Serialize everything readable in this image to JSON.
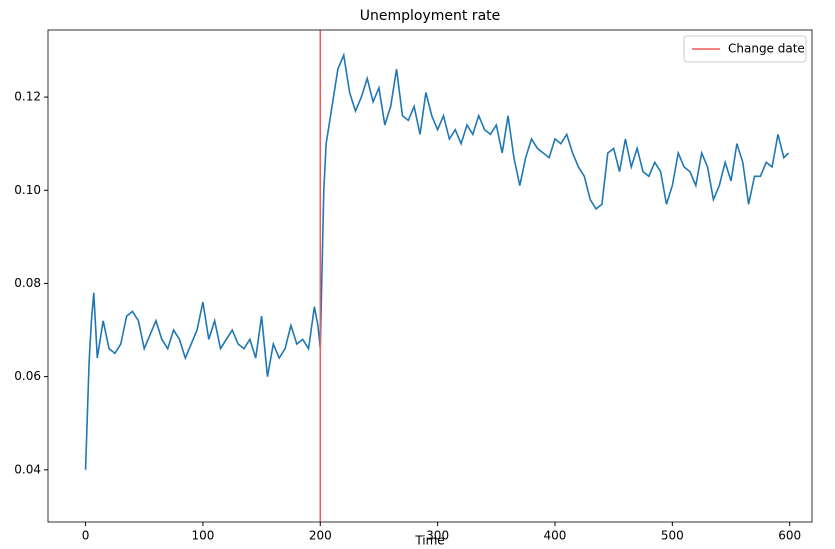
{
  "chart_data": {
    "type": "line",
    "title": "Unemployment rate",
    "x_label": "Time",
    "x": [
      0,
      3,
      5,
      7,
      10,
      15,
      20,
      25,
      30,
      35,
      40,
      45,
      50,
      55,
      60,
      65,
      70,
      75,
      80,
      85,
      90,
      95,
      100,
      105,
      110,
      115,
      120,
      125,
      130,
      135,
      140,
      145,
      150,
      155,
      160,
      165,
      170,
      175,
      180,
      185,
      190,
      195,
      198,
      200,
      203,
      205,
      210,
      215,
      220,
      225,
      230,
      235,
      240,
      245,
      250,
      255,
      260,
      265,
      270,
      275,
      280,
      285,
      290,
      295,
      300,
      305,
      310,
      315,
      320,
      325,
      330,
      335,
      340,
      345,
      350,
      355,
      360,
      365,
      370,
      375,
      380,
      385,
      390,
      395,
      400,
      405,
      410,
      415,
      420,
      425,
      430,
      435,
      440,
      445,
      450,
      455,
      460,
      465,
      470,
      475,
      480,
      485,
      490,
      495,
      500,
      505,
      510,
      515,
      520,
      525,
      530,
      535,
      540,
      545,
      550,
      555,
      560,
      565,
      570,
      575,
      580,
      585,
      590,
      595,
      599
    ],
    "series": [
      {
        "color": "#1f77b4",
        "values": [
          0.04,
          0.063,
          0.072,
          0.078,
          0.064,
          0.072,
          0.066,
          0.065,
          0.067,
          0.073,
          0.074,
          0.072,
          0.066,
          0.069,
          0.072,
          0.068,
          0.066,
          0.07,
          0.068,
          0.064,
          0.067,
          0.07,
          0.076,
          0.068,
          0.072,
          0.066,
          0.068,
          0.07,
          0.067,
          0.066,
          0.068,
          0.064,
          0.073,
          0.06,
          0.067,
          0.064,
          0.066,
          0.071,
          0.067,
          0.068,
          0.066,
          0.075,
          0.071,
          0.066,
          0.1,
          0.11,
          0.118,
          0.126,
          0.129,
          0.121,
          0.117,
          0.12,
          0.124,
          0.119,
          0.122,
          0.114,
          0.118,
          0.126,
          0.116,
          0.115,
          0.118,
          0.112,
          0.121,
          0.116,
          0.113,
          0.116,
          0.111,
          0.113,
          0.11,
          0.114,
          0.112,
          0.116,
          0.113,
          0.112,
          0.114,
          0.108,
          0.116,
          0.107,
          0.101,
          0.107,
          0.111,
          0.109,
          0.108,
          0.107,
          0.111,
          0.11,
          0.112,
          0.108,
          0.105,
          0.103,
          0.098,
          0.096,
          0.097,
          0.108,
          0.109,
          0.104,
          0.111,
          0.105,
          0.109,
          0.104,
          0.103,
          0.106,
          0.104,
          0.097,
          0.101,
          0.108,
          0.105,
          0.104,
          0.101,
          0.108,
          0.105,
          0.098,
          0.101,
          0.106,
          0.102,
          0.11,
          0.106,
          0.097,
          0.103,
          0.103,
          0.106,
          0.105,
          0.112,
          0.107,
          0.108
        ]
      }
    ],
    "vline": {
      "x": 200,
      "label": "Change date",
      "color": "#f15a5a"
    },
    "xlim": [
      -32,
      619
    ],
    "ylim": [
      0.0288,
      0.1344
    ],
    "xticks": [
      0,
      100,
      200,
      300,
      400,
      500,
      600
    ],
    "yticks": [
      0.04,
      0.06,
      0.08,
      {
        "value": 0.1,
        "label": "0.10"
      },
      0.12
    ],
    "legend": "upper right"
  }
}
